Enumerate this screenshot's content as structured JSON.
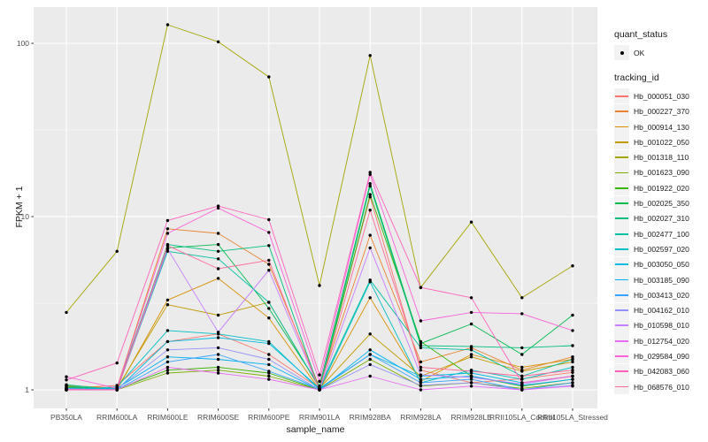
{
  "chart_data": {
    "type": "line",
    "title": "",
    "xlabel": "sample_name",
    "ylabel": "FPKM + 1",
    "y_scale": "log10",
    "y_ticks": [
      1,
      10,
      100
    ],
    "y_tick_labels": [
      "1",
      "10",
      "100"
    ],
    "y_minor_ticks": [
      3.162,
      31.62
    ],
    "ylim": [
      0.77,
      160
    ],
    "grid": true,
    "legend_position": "right",
    "categories": [
      "PB350LA",
      "RRIM600LA",
      "RRIM600LE",
      "RRIM600SE",
      "RRIM600PE",
      "RRIM901LA",
      "RRIM928BA",
      "RRIM928LA",
      "RRIM928LE",
      "RRII105LA_Control",
      "RRII105LA_Stressed"
    ],
    "series": [
      {
        "name": "Hb_000051_030",
        "color": "#F8766D",
        "values": [
          1.02,
          1.06,
          1.9,
          2.1,
          1.6,
          1.02,
          13.0,
          1.3,
          1.1,
          1.16,
          1.26
        ]
      },
      {
        "name": "Hb_000227_370",
        "color": "#EA8331",
        "values": [
          1.0,
          1.03,
          8.5,
          8.0,
          5.3,
          1.04,
          7.8,
          1.45,
          1.75,
          1.3,
          1.55
        ]
      },
      {
        "name": "Hb_000914_130",
        "color": "#D89000",
        "values": [
          1.04,
          1.0,
          3.3,
          4.4,
          2.6,
          1.0,
          3.4,
          1.12,
          1.6,
          1.35,
          1.5
        ]
      },
      {
        "name": "Hb_001022_050",
        "color": "#C09B00",
        "values": [
          1.06,
          1.02,
          3.1,
          2.7,
          3.2,
          1.02,
          2.1,
          1.2,
          1.55,
          1.28,
          1.45
        ]
      },
      {
        "name": "Hb_001318_110",
        "color": "#A3A500",
        "values": [
          2.8,
          6.3,
          128.0,
          102.0,
          64.0,
          4.0,
          85.0,
          3.9,
          9.3,
          3.4,
          5.2
        ]
      },
      {
        "name": "Hb_001623_090",
        "color": "#7CAE00",
        "values": [
          1.0,
          1.0,
          1.25,
          1.3,
          1.2,
          1.0,
          1.5,
          1.05,
          1.1,
          1.02,
          1.1
        ]
      },
      {
        "name": "Hb_001922_020",
        "color": "#39B600",
        "values": [
          1.02,
          1.01,
          1.3,
          1.35,
          1.25,
          1.0,
          13.4,
          1.9,
          1.2,
          1.05,
          1.15
        ]
      },
      {
        "name": "Hb_002025_350",
        "color": "#00BB4E",
        "values": [
          1.05,
          1.0,
          6.6,
          6.9,
          2.95,
          1.05,
          15.5,
          1.85,
          2.4,
          1.6,
          2.7
        ]
      },
      {
        "name": "Hb_002027_310",
        "color": "#00BF7D",
        "values": [
          1.03,
          1.02,
          6.9,
          6.3,
          6.8,
          1.0,
          15.0,
          1.8,
          1.78,
          1.75,
          1.8
        ]
      },
      {
        "name": "Hb_002477_100",
        "color": "#00C1A3",
        "values": [
          1.07,
          1.0,
          6.3,
          5.7,
          3.2,
          1.03,
          4.3,
          1.75,
          1.7,
          1.2,
          1.5
        ]
      },
      {
        "name": "Hb_002597_020",
        "color": "#00BFC4",
        "values": [
          1.0,
          1.04,
          2.2,
          2.1,
          1.9,
          1.0,
          4.2,
          1.1,
          1.3,
          1.15,
          1.35
        ]
      },
      {
        "name": "Hb_003050_050",
        "color": "#00BAE0",
        "values": [
          1.01,
          1.0,
          1.9,
          2.0,
          1.85,
          1.02,
          1.6,
          1.2,
          1.25,
          1.1,
          1.2
        ]
      },
      {
        "name": "Hb_003185_090",
        "color": "#00B0F6",
        "values": [
          1.0,
          1.02,
          1.55,
          1.5,
          1.4,
          1.0,
          1.7,
          1.15,
          1.2,
          1.06,
          1.15
        ]
      },
      {
        "name": "Hb_003413_020",
        "color": "#35A2FF",
        "values": [
          1.02,
          1.0,
          1.45,
          1.6,
          1.28,
          1.01,
          1.6,
          1.1,
          1.15,
          1.0,
          1.1
        ]
      },
      {
        "name": "Hb_004162_010",
        "color": "#9590FF",
        "values": [
          1.0,
          1.01,
          1.7,
          1.75,
          1.5,
          1.0,
          1.4,
          1.06,
          1.1,
          1.0,
          1.06
        ]
      },
      {
        "name": "Hb_010598_010",
        "color": "#C77CFF",
        "values": [
          1.01,
          1.0,
          6.5,
          2.15,
          4.9,
          1.0,
          6.6,
          1.22,
          1.18,
          1.08,
          1.2
        ]
      },
      {
        "name": "Hb_012754_020",
        "color": "#E76BF3",
        "values": [
          1.0,
          1.0,
          1.35,
          1.25,
          1.15,
          1.0,
          1.2,
          1.0,
          1.05,
          1.0,
          1.05
        ]
      },
      {
        "name": "Hb_029584_090",
        "color": "#FA62DB",
        "values": [
          1.19,
          1.02,
          8.0,
          11.2,
          8.1,
          1.12,
          17.5,
          2.5,
          2.8,
          2.75,
          2.2
        ]
      },
      {
        "name": "Hb_042083_060",
        "color": "#FF62BC",
        "values": [
          1.14,
          1.43,
          9.5,
          11.5,
          9.6,
          1.22,
          18.0,
          3.9,
          3.4,
          1.1,
          1.2
        ]
      },
      {
        "name": "Hb_068576_010",
        "color": "#FF6A98",
        "values": [
          1.0,
          1.0,
          6.8,
          5.0,
          5.6,
          1.0,
          10.9,
          1.35,
          1.28,
          1.2,
          1.3
        ]
      }
    ],
    "legend": {
      "quant_status_title": "quant_status",
      "quant_status_items": [
        {
          "label": "OK",
          "symbol": "point",
          "color": "#000000"
        }
      ],
      "tracking_id_title": "tracking_id"
    },
    "style": {
      "panel_bg": "#EBEBEB",
      "grid_color": "#FFFFFF",
      "point_color": "#000000",
      "tick_color": "#333333",
      "tick_text_color": "#4D4D4D",
      "axis_title_color": "#1A1A1A",
      "legend_key_bg": "#F2F2F2"
    }
  }
}
